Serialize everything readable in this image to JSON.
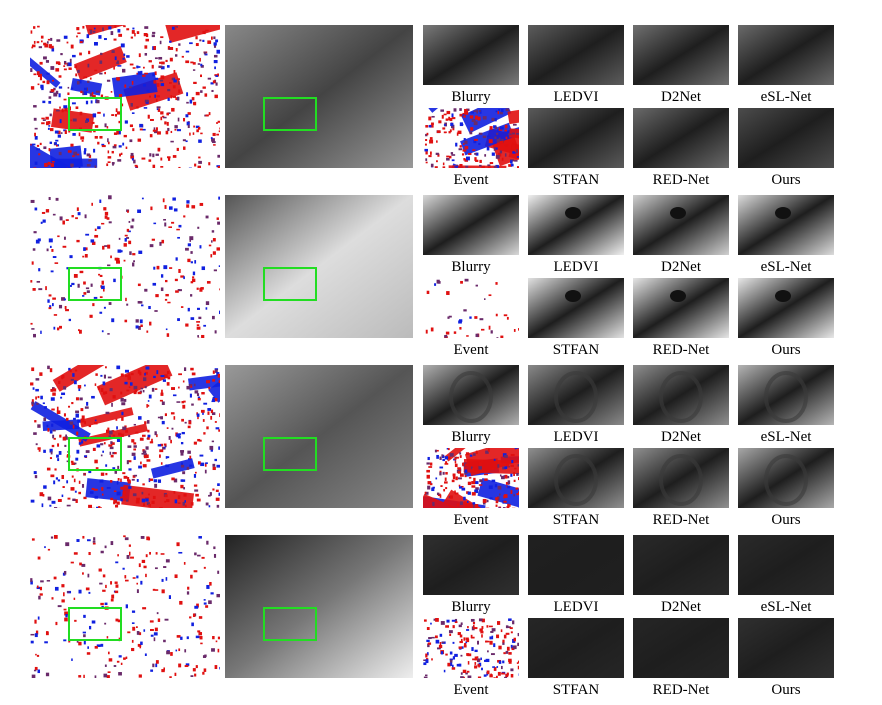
{
  "figure": {
    "rows": [
      {
        "top_labels": [
          "Blurry",
          "LEDVI",
          "D2Net",
          "eSL-Net"
        ],
        "bottom_labels": [
          "Event",
          "STFAN",
          "RED-Net",
          "Ours"
        ]
      },
      {
        "top_labels": [
          "Blurry",
          "LEDVI",
          "D2Net",
          "eSL-Net"
        ],
        "bottom_labels": [
          "Event",
          "STFAN",
          "RED-Net",
          "Ours"
        ]
      },
      {
        "top_labels": [
          "Blurry",
          "LEDVI",
          "D2Net",
          "eSL-Net"
        ],
        "bottom_labels": [
          "Event",
          "STFAN",
          "RED-Net",
          "Ours"
        ]
      },
      {
        "top_labels": [
          "Blurry",
          "LEDVI",
          "D2Net",
          "eSL-Net"
        ],
        "bottom_labels": [
          "Event",
          "STFAN",
          "RED-Net",
          "Ours"
        ]
      }
    ]
  },
  "colors": {
    "event_positive": "#e01010",
    "event_negative": "#1020e0",
    "highlight_box": "#22dd22"
  }
}
